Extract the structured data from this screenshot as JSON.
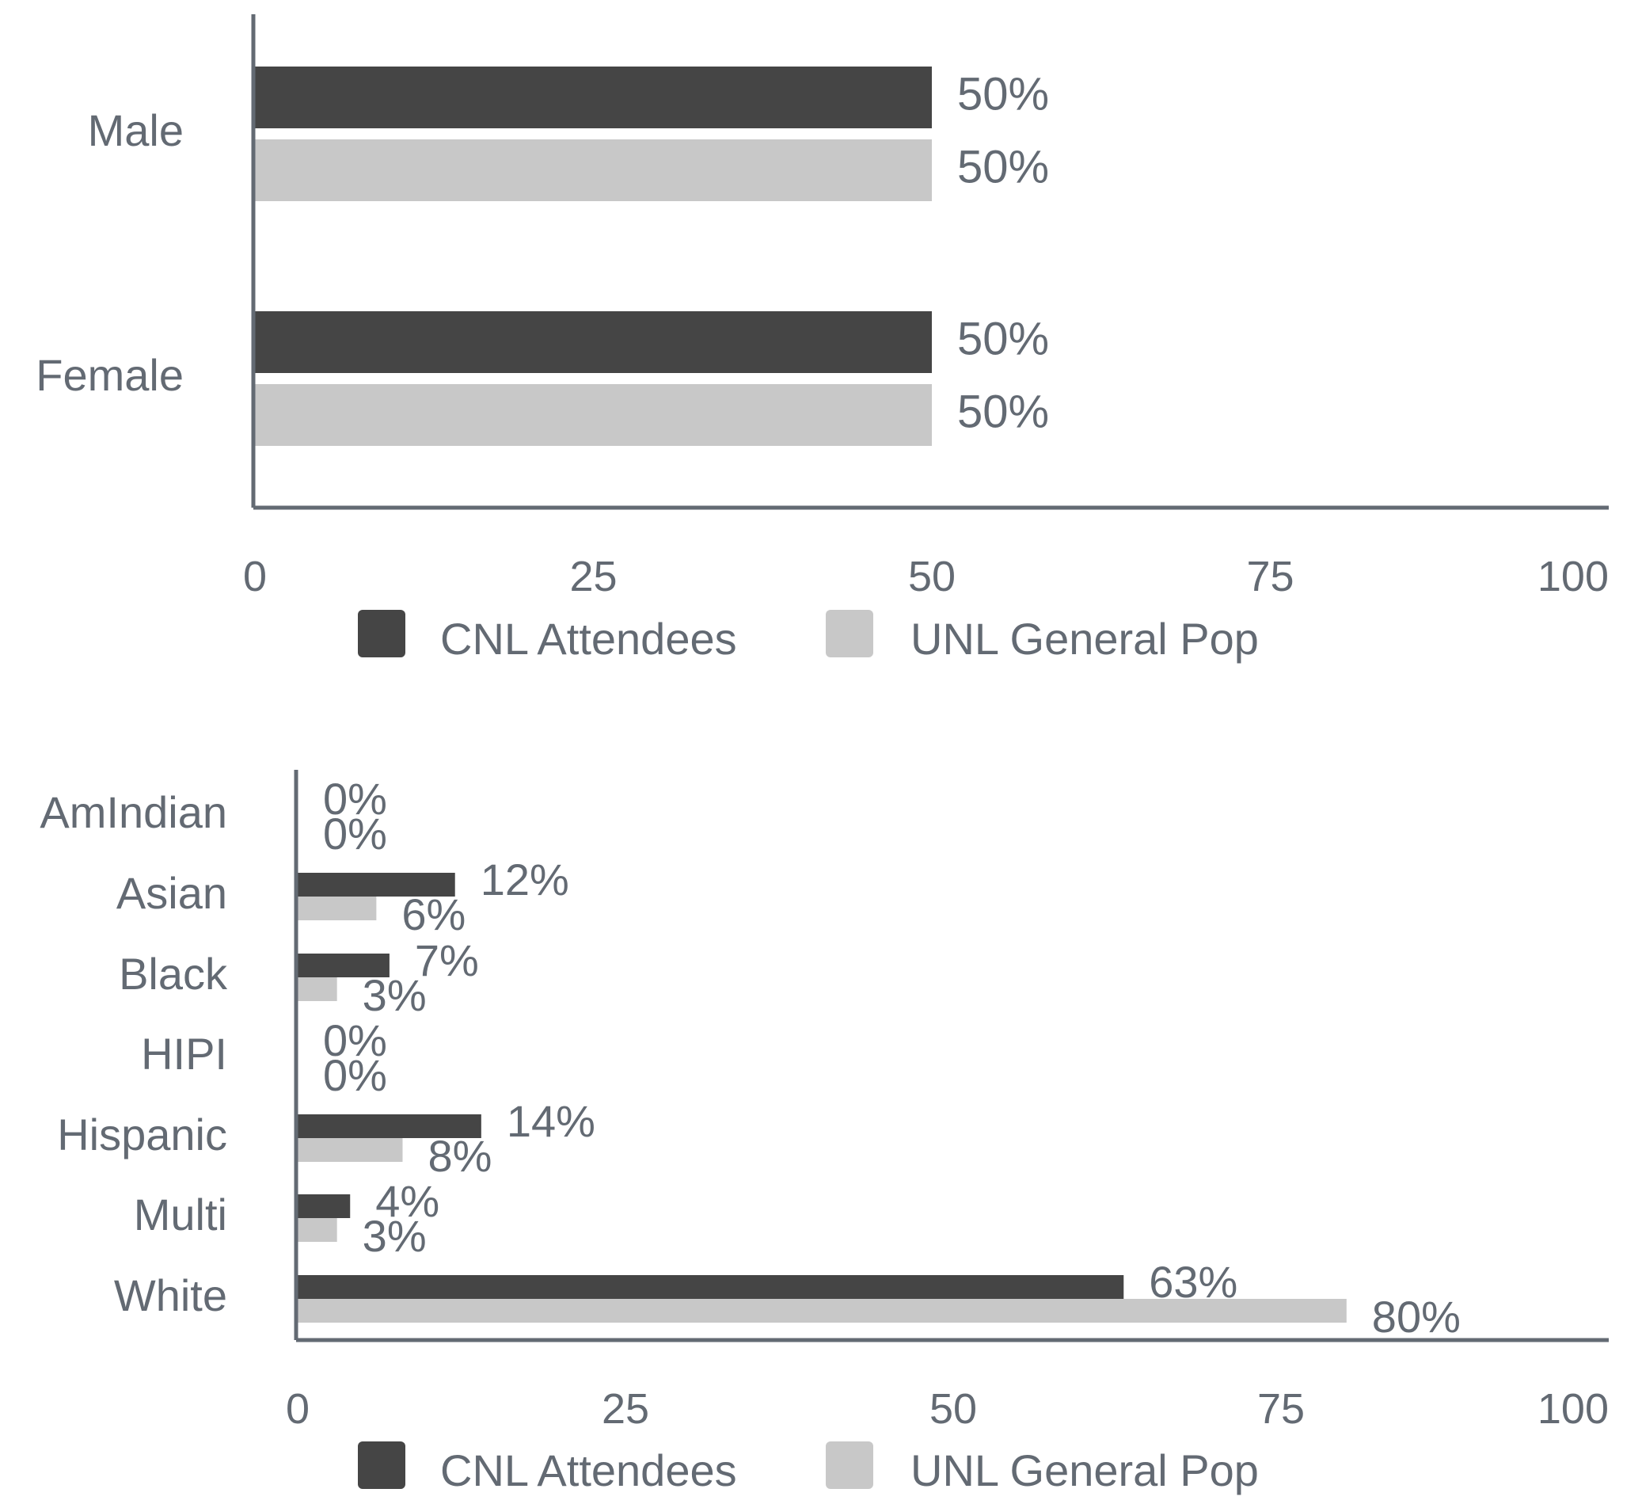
{
  "colors": {
    "cnl": "#454545",
    "unl": "#c8c8c8",
    "text": "#636a73",
    "axis": "#636a73",
    "background": "#ffffff"
  },
  "chart_data": [
    {
      "type": "bar",
      "orientation": "horizontal",
      "title": "",
      "xlabel": "",
      "ylabel": "",
      "categories": [
        "Male",
        "Female"
      ],
      "series": [
        {
          "name": "CNL Attendees",
          "values": [
            50,
            50
          ],
          "labels": [
            "50%",
            "50%"
          ],
          "color": "#454545"
        },
        {
          "name": "UNL General Pop",
          "values": [
            50,
            50
          ],
          "labels": [
            "50%",
            "50%"
          ],
          "color": "#c8c8c8"
        }
      ],
      "xlim": [
        0,
        100
      ],
      "xticks": [
        "0",
        "25",
        "50",
        "75",
        "100"
      ],
      "grid": false,
      "legend": "bottom-center"
    },
    {
      "type": "bar",
      "orientation": "horizontal",
      "title": "",
      "xlabel": "",
      "ylabel": "",
      "categories": [
        "AmIndian",
        "Asian",
        "Black",
        "HIPI",
        "Hispanic",
        "Multi",
        "White"
      ],
      "series": [
        {
          "name": "CNL Attendees",
          "values": [
            0,
            12,
            7,
            0,
            14,
            4,
            63
          ],
          "labels": [
            "0%",
            "12%",
            "7%",
            "0%",
            "14%",
            "4%",
            "63%"
          ],
          "color": "#454545"
        },
        {
          "name": "UNL General Pop",
          "values": [
            0,
            6,
            3,
            0,
            8,
            3,
            80
          ],
          "labels": [
            "0%",
            "6%",
            "3%",
            "0%",
            "8%",
            "3%",
            "80%"
          ],
          "color": "#c8c8c8"
        }
      ],
      "xlim": [
        0,
        100
      ],
      "xticks": [
        "0",
        "25",
        "50",
        "75",
        "100"
      ],
      "grid": false,
      "legend": "bottom-center"
    }
  ]
}
